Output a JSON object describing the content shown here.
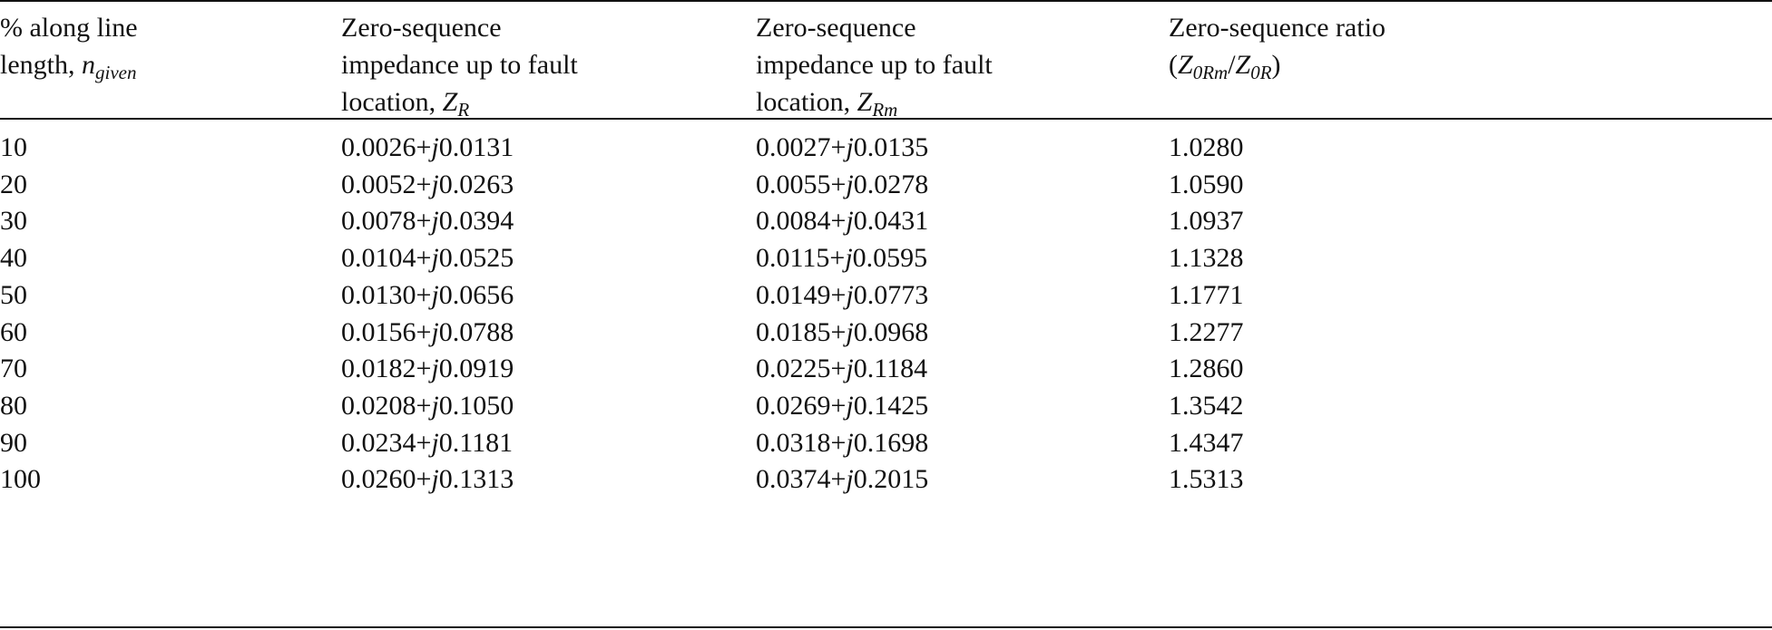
{
  "table": {
    "header": [
      {
        "text": "% along line length, ",
        "var": "n",
        "sub": "given"
      },
      {
        "text": "Zero-sequence impedance up to fault location, ",
        "var": "Z",
        "sub": "R"
      },
      {
        "text": "Zero-sequence impedance up to fault location, ",
        "var": "Z",
        "sub": "Rm"
      },
      {
        "text": "Zero-sequence ratio (",
        "var": "Z",
        "sub": "0Rm",
        "sep": "/",
        "var2": "Z",
        "sub2": "0R",
        "close": ")"
      }
    ],
    "rows": [
      [
        "10",
        {
          "re": "0.0026",
          "op": "+",
          "j": "j",
          "im": "0.0131"
        },
        {
          "re": "0.0027",
          "op": "+",
          "j": "j",
          "im": "0.0135"
        },
        "1.0280"
      ],
      [
        "20",
        {
          "re": "0.0052",
          "op": "+",
          "j": "j",
          "im": "0.0263"
        },
        {
          "re": "0.0055",
          "op": "+",
          "j": "j",
          "im": "0.0278"
        },
        "1.0590"
      ],
      [
        "30",
        {
          "re": "0.0078",
          "op": "+",
          "j": "j",
          "im": "0.0394"
        },
        {
          "re": "0.0084",
          "op": "+",
          "j": "j",
          "im": "0.0431"
        },
        "1.0937"
      ],
      [
        "40",
        {
          "re": "0.0104",
          "op": "+",
          "j": "j",
          "im": "0.0525"
        },
        {
          "re": "0.0115",
          "op": "+",
          "j": "j",
          "im": "0.0595"
        },
        "1.1328"
      ],
      [
        "50",
        {
          "re": "0.0130",
          "op": "+",
          "j": "j",
          "im": "0.0656"
        },
        {
          "re": "0.0149",
          "op": "+",
          "j": "j",
          "im": "0.0773"
        },
        "1.1771"
      ],
      [
        "60",
        {
          "re": "0.0156",
          "op": "+",
          "j": "j",
          "im": "0.0788"
        },
        {
          "re": "0.0185",
          "op": "+",
          "j": "j",
          "im": "0.0968"
        },
        "1.2277"
      ],
      [
        "70",
        {
          "re": "0.0182",
          "op": "+",
          "j": "j",
          "im": "0.0919"
        },
        {
          "re": "0.0225",
          "op": "+",
          "j": "j",
          "im": "0.1184"
        },
        "1.2860"
      ],
      [
        "80",
        {
          "re": "0.0208",
          "op": "+",
          "j": "j",
          "im": "0.1050"
        },
        {
          "re": "0.0269",
          "op": "+",
          "j": "j",
          "im": "0.1425"
        },
        "1.3542"
      ],
      [
        "90",
        {
          "re": "0.0234",
          "op": "+",
          "j": "j",
          "im": "0.1181"
        },
        {
          "re": "0.0318",
          "op": "+",
          "j": "j",
          "im": "0.1698"
        },
        "1.4347"
      ],
      [
        "100",
        {
          "re": "0.0260",
          "op": "+",
          "j": "j",
          "im": "0.1313"
        },
        {
          "re": "0.0374",
          "op": "+",
          "j": "j",
          "im": "0.2015"
        },
        "1.5313"
      ]
    ]
  }
}
